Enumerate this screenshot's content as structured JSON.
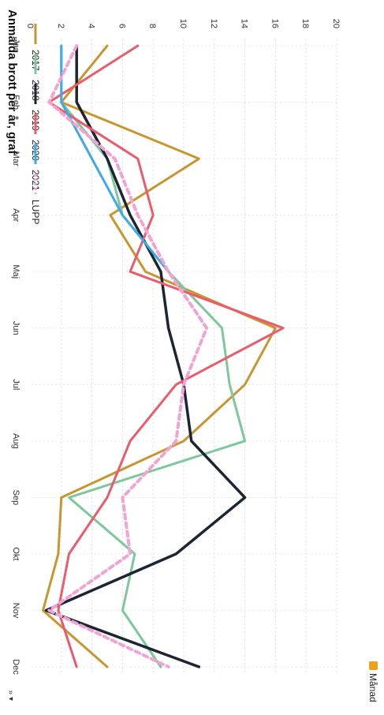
{
  "chart_data": {
    "type": "line",
    "title": "Anmälda brott per år, graf",
    "xlabel": "",
    "ylabel": "",
    "categories": [
      "Jan",
      "Feb",
      "Mar",
      "Apr",
      "Maj",
      "Jun",
      "Jul",
      "Aug",
      "Sep",
      "Okt",
      "Nov",
      "Dec"
    ],
    "ylim": [
      0,
      20
    ],
    "yticks": [
      "0",
      "2",
      "4",
      "6",
      "8",
      "10",
      "12",
      "14",
      "16",
      "18",
      "20"
    ],
    "grid": true,
    "legend_position": "right",
    "series": [
      {
        "name": "2017",
        "color": "#c9952f",
        "dashed": false,
        "values": [
          5,
          2,
          11,
          5.2,
          7.5,
          16,
          14,
          10,
          2,
          1.8,
          0.8,
          5
        ]
      },
      {
        "name": "2018",
        "color": "#7cc79b",
        "dashed": false,
        "values": [
          2,
          2,
          5,
          6,
          9,
          12.5,
          13,
          14,
          2.5,
          6.8,
          6,
          8.5
        ]
      },
      {
        "name": "2019",
        "color": "#1d2533",
        "dashed": false,
        "values": [
          3,
          3,
          5,
          6.5,
          8.5,
          9,
          10,
          10.5,
          14,
          9.5,
          1,
          11
        ]
      },
      {
        "name": "2020",
        "color": "#ea5b6b",
        "dashed": false,
        "values": [
          7,
          1.2,
          7,
          8,
          6.5,
          16.5,
          9.5,
          6.5,
          5,
          2.5,
          1.8,
          3
        ]
      },
      {
        "name": "2021",
        "color": "#3fa9e8",
        "dashed": false,
        "values": [
          2,
          2,
          4,
          6,
          9,
          null,
          null,
          null,
          null,
          null,
          null,
          null
        ]
      },
      {
        "name": "LUPP",
        "color": "#f2a3d3",
        "dashed": true,
        "values": [
          3,
          1.2,
          5.5,
          7,
          9,
          11.5,
          10,
          9.5,
          6,
          6.5,
          1.2,
          9
        ]
      }
    ]
  },
  "legend": {
    "items": [
      "2017",
      "2018",
      "2019",
      "2020",
      "2021",
      "LUPP"
    ],
    "footer_label": "Månad"
  },
  "toolbar": {
    "chevrons": "» ▾"
  }
}
